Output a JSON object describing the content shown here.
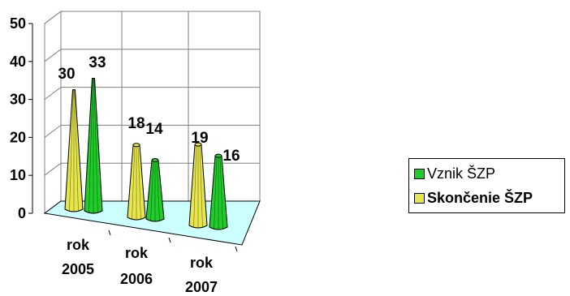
{
  "chart_data": {
    "type": "bar",
    "style": "3d-cone",
    "categories": [
      "rok 2005",
      "rok 2006",
      "rok 2007"
    ],
    "category_lines": [
      [
        "rok",
        "2005"
      ],
      [
        "rok",
        "2006"
      ],
      [
        "rok",
        "2007"
      ]
    ],
    "series": [
      {
        "name": "Skončenie ŠZP",
        "values": [
          30,
          18,
          19
        ],
        "color": "#e6e64c"
      },
      {
        "name": "Vznik ŠZP",
        "values": [
          33,
          14,
          16
        ],
        "color": "#1fcc2a"
      }
    ],
    "yticks": [
      "0",
      "10",
      "20",
      "30",
      "40",
      "50"
    ],
    "ylim": [
      0,
      50
    ],
    "grid": true,
    "floor_color": "#ccffff",
    "legend_position": "right",
    "legend_order": [
      "Vznik ŠZP",
      "Skončenie ŠZP"
    ]
  }
}
